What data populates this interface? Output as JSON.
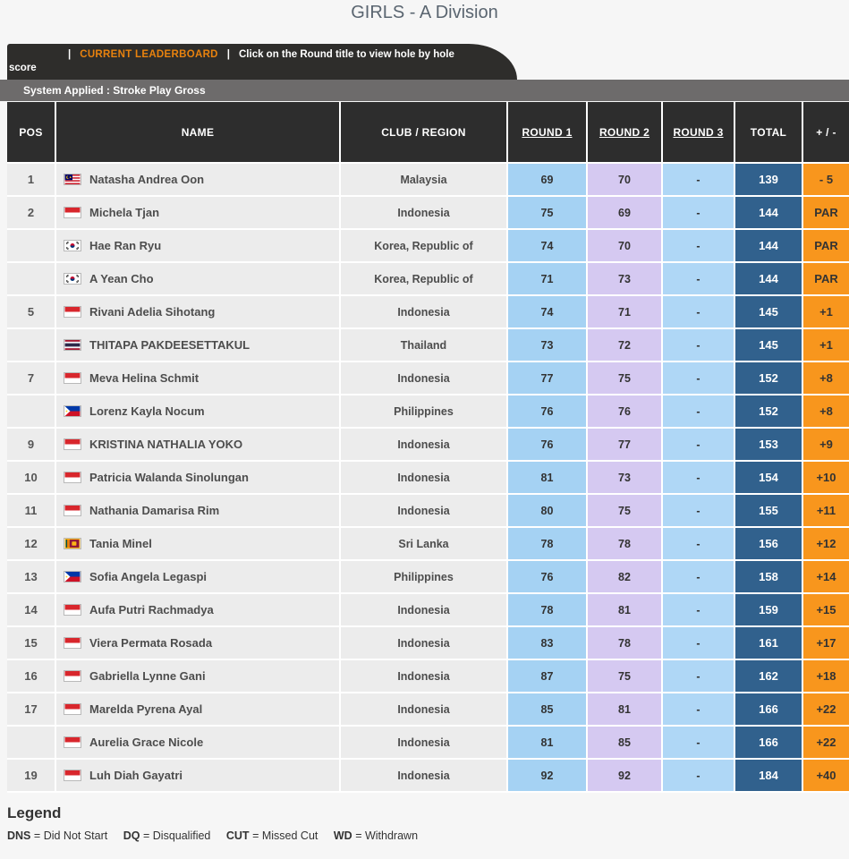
{
  "page_title": "GIRLS - A Division",
  "header_bar": {
    "separator": "|",
    "leaderboard_label": "CURRENT LEADERBOARD",
    "instruction": "Click on the Round title to view hole by hole score",
    "accent_color": "#e8820e",
    "bar_bg": "#2e2d2b"
  },
  "system_bar": {
    "text": "System Applied : Stroke Play Gross",
    "bg": "#6d6b6b"
  },
  "table": {
    "headers": {
      "pos": "POS",
      "name": "NAME",
      "club": "CLUB / REGION",
      "round1": "ROUND 1",
      "round2": "ROUND 2",
      "round3": "ROUND 3",
      "total": "TOTAL",
      "plus_minus": "+ / -"
    },
    "colors": {
      "header_bg": "#2d2d2d",
      "row_bg": "#ececec",
      "round1_bg": "#a5d2f3",
      "round2_bg": "#d5c9f1",
      "round3_bg": "#afd7f6",
      "total_bg": "#31618d",
      "plus_minus_bg": "#f8961d"
    },
    "rows": [
      {
        "pos": "1",
        "flag": "malaysia",
        "name": "Natasha Andrea Oon",
        "club": "Malaysia",
        "round1": "69",
        "round2": "70",
        "round3": "-",
        "total": "139",
        "plus_minus": "- 5"
      },
      {
        "pos": "2",
        "flag": "indonesia",
        "name": "Michela Tjan",
        "club": "Indonesia",
        "round1": "75",
        "round2": "69",
        "round3": "-",
        "total": "144",
        "plus_minus": "PAR"
      },
      {
        "pos": "",
        "flag": "korea",
        "name": "Hae Ran Ryu",
        "club": "Korea, Republic of",
        "round1": "74",
        "round2": "70",
        "round3": "-",
        "total": "144",
        "plus_minus": "PAR"
      },
      {
        "pos": "",
        "flag": "korea",
        "name": "A Yean Cho",
        "club": "Korea, Republic of",
        "round1": "71",
        "round2": "73",
        "round3": "-",
        "total": "144",
        "plus_minus": "PAR"
      },
      {
        "pos": "5",
        "flag": "indonesia",
        "name": "Rivani Adelia Sihotang",
        "club": "Indonesia",
        "round1": "74",
        "round2": "71",
        "round3": "-",
        "total": "145",
        "plus_minus": "+1"
      },
      {
        "pos": "",
        "flag": "thailand",
        "name": "THITAPA PAKDEESETTAKUL",
        "club": "Thailand",
        "round1": "73",
        "round2": "72",
        "round3": "-",
        "total": "145",
        "plus_minus": "+1"
      },
      {
        "pos": "7",
        "flag": "indonesia",
        "name": "Meva Helina Schmit",
        "club": "Indonesia",
        "round1": "77",
        "round2": "75",
        "round3": "-",
        "total": "152",
        "plus_minus": "+8"
      },
      {
        "pos": "",
        "flag": "philippines",
        "name": "Lorenz Kayla Nocum",
        "club": "Philippines",
        "round1": "76",
        "round2": "76",
        "round3": "-",
        "total": "152",
        "plus_minus": "+8"
      },
      {
        "pos": "9",
        "flag": "indonesia",
        "name": "KRISTINA NATHALIA YOKO",
        "club": "Indonesia",
        "round1": "76",
        "round2": "77",
        "round3": "-",
        "total": "153",
        "plus_minus": "+9"
      },
      {
        "pos": "10",
        "flag": "indonesia",
        "name": "Patricia Walanda Sinolungan",
        "club": "Indonesia",
        "round1": "81",
        "round2": "73",
        "round3": "-",
        "total": "154",
        "plus_minus": "+10"
      },
      {
        "pos": "11",
        "flag": "indonesia",
        "name": "Nathania Damarisa Rim",
        "club": "Indonesia",
        "round1": "80",
        "round2": "75",
        "round3": "-",
        "total": "155",
        "plus_minus": "+11"
      },
      {
        "pos": "12",
        "flag": "srilanka",
        "name": "Tania Minel",
        "club": "Sri Lanka",
        "round1": "78",
        "round2": "78",
        "round3": "-",
        "total": "156",
        "plus_minus": "+12"
      },
      {
        "pos": "13",
        "flag": "philippines",
        "name": "Sofia Angela Legaspi",
        "club": "Philippines",
        "round1": "76",
        "round2": "82",
        "round3": "-",
        "total": "158",
        "plus_minus": "+14"
      },
      {
        "pos": "14",
        "flag": "indonesia",
        "name": "Aufa Putri Rachmadya",
        "club": "Indonesia",
        "round1": "78",
        "round2": "81",
        "round3": "-",
        "total": "159",
        "plus_minus": "+15"
      },
      {
        "pos": "15",
        "flag": "indonesia",
        "name": "Viera Permata Rosada",
        "club": "Indonesia",
        "round1": "83",
        "round2": "78",
        "round3": "-",
        "total": "161",
        "plus_minus": "+17"
      },
      {
        "pos": "16",
        "flag": "indonesia",
        "name": "Gabriella Lynne Gani",
        "club": "Indonesia",
        "round1": "87",
        "round2": "75",
        "round3": "-",
        "total": "162",
        "plus_minus": "+18"
      },
      {
        "pos": "17",
        "flag": "indonesia",
        "name": "Marelda Pyrena Ayal",
        "club": "Indonesia",
        "round1": "85",
        "round2": "81",
        "round3": "-",
        "total": "166",
        "plus_minus": "+22"
      },
      {
        "pos": "",
        "flag": "indonesia",
        "name": "Aurelia Grace Nicole",
        "club": "Indonesia",
        "round1": "81",
        "round2": "85",
        "round3": "-",
        "total": "166",
        "plus_minus": "+22"
      },
      {
        "pos": "19",
        "flag": "indonesia",
        "name": "Luh Diah Gayatri",
        "club": "Indonesia",
        "round1": "92",
        "round2": "92",
        "round3": "-",
        "total": "184",
        "plus_minus": "+40"
      }
    ]
  },
  "legend": {
    "title": "Legend",
    "separator": "=",
    "items": [
      {
        "abbr": "DNS",
        "meaning": "Did Not Start"
      },
      {
        "abbr": "DQ",
        "meaning": "Disqualified"
      },
      {
        "abbr": "CUT",
        "meaning": "Missed Cut"
      },
      {
        "abbr": "WD",
        "meaning": "Withdrawn"
      }
    ]
  }
}
